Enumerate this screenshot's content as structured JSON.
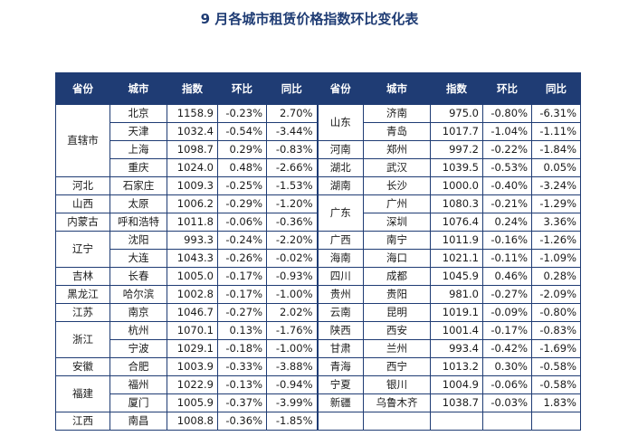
{
  "title": "9 月各城市租赁价格指数环比变化表",
  "headers": [
    "省份",
    "城市",
    "指数",
    "环比",
    "同比",
    "省份",
    "城市",
    "指数",
    "环比",
    "同比"
  ],
  "left": [
    {
      "province": "直辖市",
      "rowspan": 4,
      "city": "北京",
      "index": "1158.9",
      "mom": "-0.23%",
      "yoy": "2.70%"
    },
    {
      "city": "天津",
      "index": "1032.4",
      "mom": "-0.54%",
      "yoy": "-3.44%"
    },
    {
      "city": "上海",
      "index": "1098.7",
      "mom": "0.29%",
      "yoy": "-0.83%"
    },
    {
      "city": "重庆",
      "index": "1024.0",
      "mom": "0.48%",
      "yoy": "-2.66%"
    },
    {
      "province": "河北",
      "rowspan": 1,
      "city": "石家庄",
      "index": "1009.3",
      "mom": "-0.25%",
      "yoy": "-1.53%"
    },
    {
      "province": "山西",
      "rowspan": 1,
      "city": "太原",
      "index": "1006.2",
      "mom": "-0.29%",
      "yoy": "-1.20%"
    },
    {
      "province": "内蒙古",
      "rowspan": 1,
      "city": "呼和浩特",
      "index": "1011.8",
      "mom": "-0.06%",
      "yoy": "-0.36%"
    },
    {
      "province": "辽宁",
      "rowspan": 2,
      "city": "沈阳",
      "index": "993.3",
      "mom": "-0.24%",
      "yoy": "-2.20%"
    },
    {
      "city": "大连",
      "index": "1043.3",
      "mom": "-0.26%",
      "yoy": "-0.02%"
    },
    {
      "province": "吉林",
      "rowspan": 1,
      "city": "长春",
      "index": "1005.0",
      "mom": "-0.17%",
      "yoy": "-0.93%"
    },
    {
      "province": "黑龙江",
      "rowspan": 1,
      "city": "哈尔滨",
      "index": "1002.8",
      "mom": "-0.17%",
      "yoy": "-1.00%"
    },
    {
      "province": "江苏",
      "rowspan": 1,
      "city": "南京",
      "index": "1046.7",
      "mom": "-0.27%",
      "yoy": "2.02%"
    },
    {
      "province": "浙江",
      "rowspan": 2,
      "city": "杭州",
      "index": "1070.1",
      "mom": "0.13%",
      "yoy": "-1.76%"
    },
    {
      "city": "宁波",
      "index": "1029.1",
      "mom": "-0.18%",
      "yoy": "-1.00%"
    },
    {
      "province": "安徽",
      "rowspan": 1,
      "city": "合肥",
      "index": "1003.9",
      "mom": "-0.33%",
      "yoy": "-3.88%"
    },
    {
      "province": "福建",
      "rowspan": 2,
      "city": "福州",
      "index": "1022.9",
      "mom": "-0.13%",
      "yoy": "-0.94%"
    },
    {
      "city": "厦门",
      "index": "1005.9",
      "mom": "-0.37%",
      "yoy": "-3.99%"
    },
    {
      "province": "江西",
      "rowspan": 1,
      "city": "南昌",
      "index": "1008.8",
      "mom": "-0.36%",
      "yoy": "-1.85%"
    }
  ],
  "right": [
    {
      "province": "山东",
      "rowspan": 2,
      "city": "济南",
      "index": "975.0",
      "mom": "-0.80%",
      "yoy": "-6.31%"
    },
    {
      "city": "青岛",
      "index": "1017.7",
      "mom": "-1.04%",
      "yoy": "-1.11%"
    },
    {
      "province": "河南",
      "rowspan": 1,
      "city": "郑州",
      "index": "997.2",
      "mom": "-0.22%",
      "yoy": "-1.84%"
    },
    {
      "province": "湖北",
      "rowspan": 1,
      "city": "武汉",
      "index": "1039.5",
      "mom": "-0.53%",
      "yoy": "0.05%"
    },
    {
      "province": "湖南",
      "rowspan": 1,
      "city": "长沙",
      "index": "1000.0",
      "mom": "-0.40%",
      "yoy": "-3.24%"
    },
    {
      "province": "广东",
      "rowspan": 2,
      "city": "广州",
      "index": "1080.3",
      "mom": "-0.21%",
      "yoy": "-1.29%"
    },
    {
      "city": "深圳",
      "index": "1076.4",
      "mom": "0.24%",
      "yoy": "3.36%"
    },
    {
      "province": "广西",
      "rowspan": 1,
      "city": "南宁",
      "index": "1011.9",
      "mom": "-0.16%",
      "yoy": "-1.26%"
    },
    {
      "province": "海南",
      "rowspan": 1,
      "city": "海口",
      "index": "1021.1",
      "mom": "-0.11%",
      "yoy": "-1.09%"
    },
    {
      "province": "四川",
      "rowspan": 1,
      "city": "成都",
      "index": "1045.9",
      "mom": "0.46%",
      "yoy": "0.28%"
    },
    {
      "province": "贵州",
      "rowspan": 1,
      "city": "贵阳",
      "index": "981.0",
      "mom": "-0.27%",
      "yoy": "-2.09%"
    },
    {
      "province": "云南",
      "rowspan": 1,
      "city": "昆明",
      "index": "1019.1",
      "mom": "-0.09%",
      "yoy": "-0.80%"
    },
    {
      "province": "陕西",
      "rowspan": 1,
      "city": "西安",
      "index": "1001.4",
      "mom": "-0.17%",
      "yoy": "-0.83%"
    },
    {
      "province": "甘肃",
      "rowspan": 1,
      "city": "兰州",
      "index": "993.4",
      "mom": "-0.42%",
      "yoy": "-1.69%"
    },
    {
      "province": "青海",
      "rowspan": 1,
      "city": "西宁",
      "index": "1013.2",
      "mom": "0.30%",
      "yoy": "-0.58%"
    },
    {
      "province": "宁夏",
      "rowspan": 1,
      "city": "银川",
      "index": "1004.9",
      "mom": "-0.06%",
      "yoy": "-0.58%"
    },
    {
      "province": "新疆",
      "rowspan": 1,
      "city": "乌鲁木齐",
      "index": "1038.7",
      "mom": "-0.03%",
      "yoy": "1.83%"
    },
    {
      "empty": true
    }
  ]
}
